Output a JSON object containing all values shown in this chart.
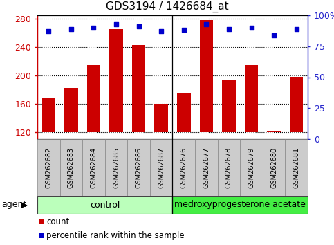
{
  "title": "GDS3194 / 1426684_at",
  "samples": [
    "GSM262682",
    "GSM262683",
    "GSM262684",
    "GSM262685",
    "GSM262686",
    "GSM262687",
    "GSM262676",
    "GSM262677",
    "GSM262678",
    "GSM262679",
    "GSM262680",
    "GSM262681"
  ],
  "counts": [
    168,
    182,
    215,
    265,
    243,
    160,
    175,
    278,
    193,
    215,
    122,
    198
  ],
  "percentiles": [
    87,
    89,
    90,
    93,
    91,
    87,
    88,
    93,
    89,
    90,
    84,
    89
  ],
  "control_n": 6,
  "treatment_n": 6,
  "control_label": "control",
  "treatment_label": "medroxyprogesterone acetate",
  "agent_label": "agent",
  "ylim_left": [
    110,
    285
  ],
  "ylim_right": [
    0,
    100
  ],
  "yticks_left": [
    120,
    160,
    200,
    240,
    280
  ],
  "yticks_right": [
    0,
    25,
    50,
    75,
    100
  ],
  "ytick_right_labels": [
    "0",
    "25",
    "50",
    "75",
    "100%"
  ],
  "bar_color": "#cc0000",
  "dot_color": "#0000cc",
  "bar_bottom": 120,
  "tick_color_left": "#cc0000",
  "tick_color_right": "#2222cc",
  "control_color": "#bbffbb",
  "treatment_color": "#44ee44",
  "xlabel_bg": "#cccccc",
  "legend_count_label": "count",
  "legend_pct_label": "percentile rank within the sample",
  "title_fontsize": 11,
  "tick_fontsize": 9,
  "sample_fontsize": 7.0,
  "agent_fontsize": 9,
  "legend_fontsize": 8.5
}
